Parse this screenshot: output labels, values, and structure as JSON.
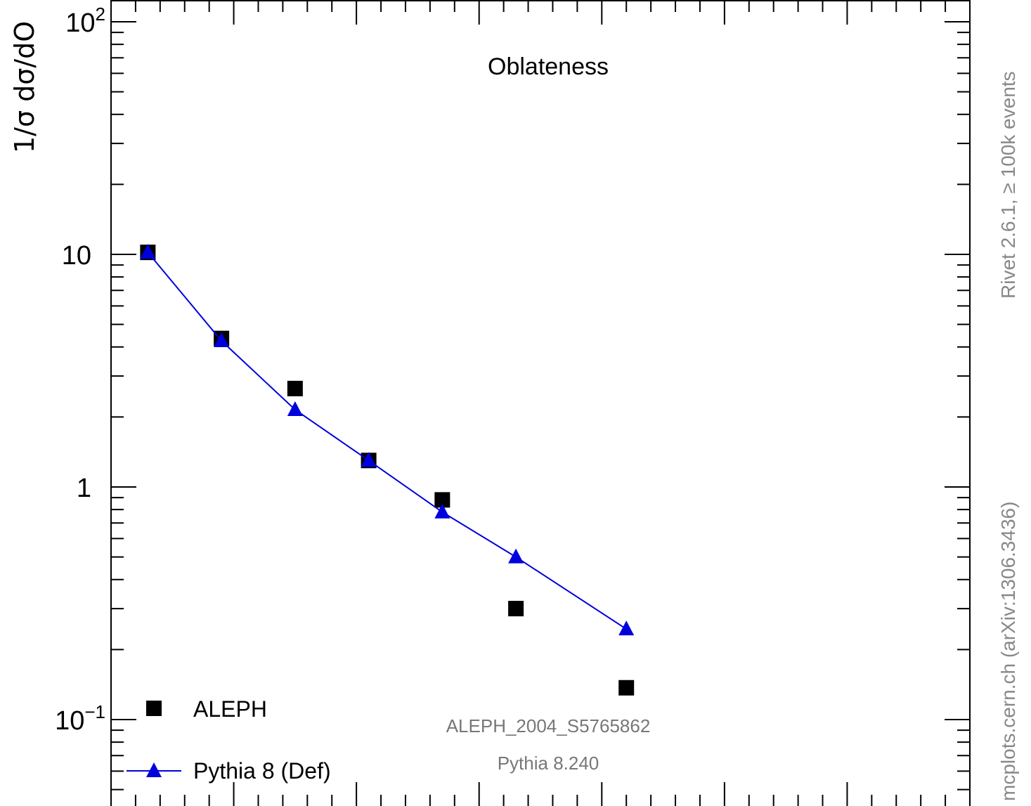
{
  "chart_data": {
    "type": "scatter",
    "title": "Oblateness",
    "ylabel": "1/σ  dσ/dO",
    "xlabel": "",
    "yscale": "log",
    "ylim": [
      0.05,
      110
    ],
    "xlim": [
      0,
      0.7
    ],
    "ytick_labels": [
      {
        "value": 100,
        "base": "10",
        "exp": "2"
      },
      {
        "value": 10,
        "base": "10",
        "exp": ""
      },
      {
        "value": 1,
        "base": "1",
        "exp": ""
      },
      {
        "value": 0.1,
        "base": "10",
        "exp": "−1"
      }
    ],
    "series": [
      {
        "name": "ALEPH",
        "marker": "square",
        "color": "#000000",
        "x": [
          0.03,
          0.09,
          0.15,
          0.21,
          0.27,
          0.33,
          0.42
        ],
        "y": [
          10.2,
          4.35,
          2.65,
          1.3,
          0.88,
          0.3,
          0.137
        ]
      },
      {
        "name": "Pythia 8 (Def)",
        "marker": "triangle",
        "line": true,
        "color": "#0000dd",
        "x": [
          0.03,
          0.09,
          0.15,
          0.21,
          0.27,
          0.33,
          0.42
        ],
        "y": [
          10.2,
          4.25,
          2.15,
          1.3,
          0.78,
          0.5,
          0.245
        ]
      }
    ],
    "legend_position": "bottom-left"
  },
  "annotations": {
    "analysis_id": "ALEPH_2004_S5765862",
    "generator": "Pythia 8.240",
    "rivet": "Rivet 2.6.1, ≥ 100k events",
    "mcplots": "mcplots.cern.ch (arXiv:1306.3436)"
  }
}
